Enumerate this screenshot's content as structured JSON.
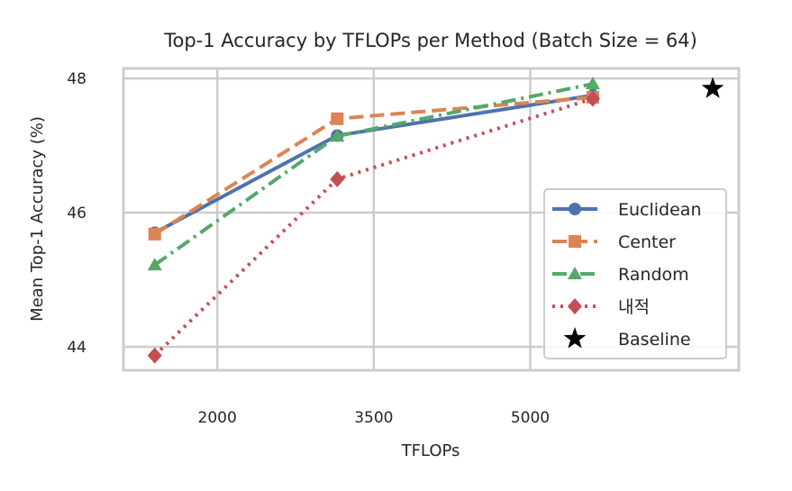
{
  "chart_data": {
    "type": "line",
    "title": "Top-1 Accuracy by TFLOPs per Method (Batch Size = 64)",
    "xlabel": "TFLOPs",
    "ylabel": "Mean Top-1 Accuracy (%)",
    "xlim": [
      1100,
      7000
    ],
    "ylim": [
      43.65,
      48.15
    ],
    "xticks": [
      2000,
      3500,
      5000
    ],
    "yticks": [
      44,
      46,
      48
    ],
    "grid": true,
    "legend_position": "lower-right",
    "series": [
      {
        "name": "Euclidean",
        "color": "#4c72b0",
        "marker": "circle",
        "dash": "solid",
        "x": [
          1400,
          3150,
          5600
        ],
        "y": [
          45.7,
          47.15,
          47.75
        ]
      },
      {
        "name": "Center",
        "color": "#dd8452",
        "marker": "square",
        "dash": "dashed",
        "x": [
          1400,
          3150,
          5600
        ],
        "y": [
          45.68,
          47.4,
          47.72
        ]
      },
      {
        "name": "Random",
        "color": "#55a868",
        "marker": "triangle",
        "dash": "dashdot",
        "x": [
          1400,
          3150,
          5600
        ],
        "y": [
          45.22,
          47.14,
          47.92
        ]
      },
      {
        "name": "내적",
        "color": "#c44e52",
        "marker": "diamond",
        "dash": "dotted",
        "x": [
          1400,
          3150,
          5600
        ],
        "y": [
          43.87,
          46.5,
          47.7
        ]
      }
    ],
    "baseline": {
      "name": "Baseline",
      "color": "#000000",
      "marker": "star",
      "x": [
        6750
      ],
      "y": [
        47.85
      ]
    }
  }
}
